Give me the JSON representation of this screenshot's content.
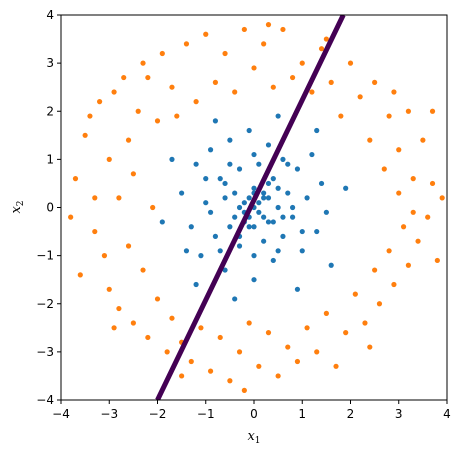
{
  "chart_data": {
    "type": "scatter",
    "title": "",
    "xlabel": "x",
    "xlabel_sub": "1",
    "ylabel": "x",
    "ylabel_sub": "2",
    "xlim": [
      -4,
      4
    ],
    "ylim": [
      -4,
      4
    ],
    "xticks": [
      -4,
      -3,
      -2,
      -1,
      0,
      1,
      2,
      3,
      4
    ],
    "yticks": [
      -4,
      -3,
      -2,
      -1,
      0,
      1,
      2,
      3,
      4
    ],
    "grid": false,
    "legend": "none",
    "series": [
      {
        "color": "#ff7f0e",
        "points": [
          [
            -3.7,
            0.6
          ],
          [
            -3.5,
            1.5
          ],
          [
            -3.4,
            1.9
          ],
          [
            -3.3,
            -0.5
          ],
          [
            -3.2,
            2.2
          ],
          [
            -3.1,
            -1.0
          ],
          [
            -3.0,
            1.0
          ],
          [
            -3.0,
            -1.7
          ],
          [
            -2.9,
            2.4
          ],
          [
            -2.8,
            0.2
          ],
          [
            -2.8,
            -2.1
          ],
          [
            -2.7,
            2.7
          ],
          [
            -2.6,
            -0.8
          ],
          [
            -2.6,
            1.4
          ],
          [
            -2.5,
            -2.4
          ],
          [
            -2.5,
            0.7
          ],
          [
            -2.4,
            2.0
          ],
          [
            -2.3,
            -1.3
          ],
          [
            -2.3,
            3.0
          ],
          [
            -2.2,
            -2.7
          ],
          [
            -2.1,
            0.0
          ],
          [
            -2.0,
            1.8
          ],
          [
            -2.0,
            -1.9
          ],
          [
            -1.9,
            3.2
          ],
          [
            -1.8,
            -3.0
          ],
          [
            -1.7,
            2.5
          ],
          [
            -1.7,
            -2.3
          ],
          [
            -1.6,
            1.9
          ],
          [
            -1.5,
            -2.8
          ],
          [
            -1.4,
            3.4
          ],
          [
            -1.3,
            -3.2
          ],
          [
            -1.2,
            2.2
          ],
          [
            -1.1,
            -2.5
          ],
          [
            -1.0,
            3.6
          ],
          [
            -0.9,
            -3.4
          ],
          [
            -0.8,
            2.6
          ],
          [
            -0.7,
            -2.7
          ],
          [
            -0.6,
            3.2
          ],
          [
            -0.5,
            -3.6
          ],
          [
            -0.4,
            2.4
          ],
          [
            -0.3,
            -3.0
          ],
          [
            -0.2,
            3.7
          ],
          [
            -0.1,
            -2.4
          ],
          [
            0.0,
            2.9
          ],
          [
            0.1,
            -3.3
          ],
          [
            0.2,
            3.4
          ],
          [
            0.3,
            -2.6
          ],
          [
            0.4,
            2.5
          ],
          [
            0.5,
            -3.5
          ],
          [
            0.6,
            3.7
          ],
          [
            0.7,
            -2.9
          ],
          [
            0.8,
            2.7
          ],
          [
            0.9,
            -3.2
          ],
          [
            1.0,
            3.0
          ],
          [
            1.1,
            -2.5
          ],
          [
            1.2,
            2.4
          ],
          [
            1.3,
            -3.0
          ],
          [
            1.4,
            3.3
          ],
          [
            1.5,
            -2.2
          ],
          [
            1.6,
            2.6
          ],
          [
            1.7,
            -3.3
          ],
          [
            1.8,
            1.9
          ],
          [
            1.9,
            -2.6
          ],
          [
            2.0,
            3.0
          ],
          [
            2.1,
            -1.8
          ],
          [
            2.2,
            2.3
          ],
          [
            2.3,
            -2.4
          ],
          [
            2.4,
            1.4
          ],
          [
            2.5,
            -1.3
          ],
          [
            2.5,
            2.6
          ],
          [
            2.6,
            -2.0
          ],
          [
            2.7,
            0.8
          ],
          [
            2.8,
            1.9
          ],
          [
            2.8,
            -0.9
          ],
          [
            2.9,
            -1.6
          ],
          [
            3.0,
            0.3
          ],
          [
            3.0,
            1.2
          ],
          [
            3.1,
            -0.4
          ],
          [
            3.2,
            2.0
          ],
          [
            3.2,
            -1.2
          ],
          [
            3.3,
            0.6
          ],
          [
            3.4,
            -0.7
          ],
          [
            3.5,
            1.4
          ],
          [
            3.6,
            -0.2
          ],
          [
            3.7,
            0.5
          ],
          [
            3.8,
            -1.1
          ],
          [
            3.9,
            0.2
          ],
          [
            3.7,
            2.0
          ],
          [
            -3.6,
            -1.4
          ],
          [
            -3.8,
            -0.2
          ],
          [
            -2.2,
            2.7
          ],
          [
            -1.5,
            -3.5
          ],
          [
            1.5,
            3.5
          ],
          [
            2.4,
            -2.9
          ],
          [
            -2.9,
            -2.5
          ],
          [
            2.9,
            2.4
          ],
          [
            -0.2,
            -3.8
          ],
          [
            0.3,
            3.8
          ],
          [
            -3.3,
            0.2
          ],
          [
            3.3,
            -0.1
          ]
        ]
      },
      {
        "color": "#1f77b4",
        "points": [
          [
            -1.5,
            0.3
          ],
          [
            -1.3,
            -0.4
          ],
          [
            -1.2,
            0.9
          ],
          [
            -1.1,
            -1.0
          ],
          [
            -1.0,
            0.1
          ],
          [
            -0.9,
            1.2
          ],
          [
            -0.8,
            -0.6
          ],
          [
            -0.7,
            0.6
          ],
          [
            -0.6,
            -1.3
          ],
          [
            -0.6,
            0.2
          ],
          [
            -0.5,
            1.4
          ],
          [
            -0.4,
            -0.2
          ],
          [
            -0.3,
            0.8
          ],
          [
            -0.3,
            -0.8
          ],
          [
            -0.2,
            0.1
          ],
          [
            -0.1,
            1.6
          ],
          [
            -0.1,
            -0.4
          ],
          [
            0.0,
            0.4
          ],
          [
            0.0,
            -1.5
          ],
          [
            0.1,
            -0.1
          ],
          [
            0.1,
            0.9
          ],
          [
            0.2,
            -0.7
          ],
          [
            0.2,
            0.2
          ],
          [
            0.3,
            1.3
          ],
          [
            0.3,
            -0.3
          ],
          [
            0.4,
            0.6
          ],
          [
            0.4,
            -1.1
          ],
          [
            0.5,
            0.0
          ],
          [
            0.6,
            1.0
          ],
          [
            0.6,
            -0.6
          ],
          [
            0.7,
            0.3
          ],
          [
            0.8,
            -0.2
          ],
          [
            0.9,
            0.8
          ],
          [
            1.0,
            -0.9
          ],
          [
            1.1,
            0.2
          ],
          [
            1.2,
            1.1
          ],
          [
            1.3,
            -0.5
          ],
          [
            1.4,
            0.5
          ],
          [
            1.5,
            -0.1
          ],
          [
            -1.4,
            -0.9
          ],
          [
            -0.2,
            -0.1
          ],
          [
            0.0,
            0.0
          ],
          [
            -0.1,
            0.2
          ],
          [
            0.2,
            -0.2
          ],
          [
            -0.3,
            0.0
          ],
          [
            0.1,
            0.1
          ],
          [
            -0.2,
            -0.3
          ],
          [
            0.3,
            0.2
          ],
          [
            -0.1,
            -0.2
          ],
          [
            0.2,
            0.3
          ],
          [
            -0.4,
            0.3
          ],
          [
            0.4,
            -0.3
          ],
          [
            0.0,
            -0.4
          ],
          [
            0.0,
            0.3
          ],
          [
            -0.5,
            -0.4
          ],
          [
            0.5,
            0.4
          ],
          [
            -0.6,
            0.5
          ],
          [
            0.6,
            -0.2
          ],
          [
            -0.3,
            -0.6
          ],
          [
            0.3,
            0.5
          ],
          [
            -1.7,
            1.0
          ],
          [
            1.6,
            -1.2
          ],
          [
            -0.8,
            1.8
          ],
          [
            0.9,
            -1.7
          ],
          [
            -1.2,
            -1.6
          ],
          [
            1.3,
            1.6
          ],
          [
            -1.9,
            -0.3
          ],
          [
            1.9,
            0.4
          ],
          [
            -0.4,
            -1.9
          ],
          [
            0.5,
            1.9
          ],
          [
            -0.9,
            -0.1
          ],
          [
            0.8,
            0.0
          ],
          [
            -0.7,
            -0.9
          ],
          [
            0.7,
            0.9
          ],
          [
            -1.0,
            0.6
          ],
          [
            1.0,
            -0.5
          ],
          [
            0.0,
            1.1
          ],
          [
            0.0,
            -1.0
          ],
          [
            -0.5,
            0.9
          ],
          [
            0.5,
            -0.9
          ]
        ]
      }
    ],
    "line": {
      "color": "#440154",
      "x": [
        -2.0,
        1.85
      ],
      "y": [
        -4.0,
        4.0
      ]
    }
  }
}
